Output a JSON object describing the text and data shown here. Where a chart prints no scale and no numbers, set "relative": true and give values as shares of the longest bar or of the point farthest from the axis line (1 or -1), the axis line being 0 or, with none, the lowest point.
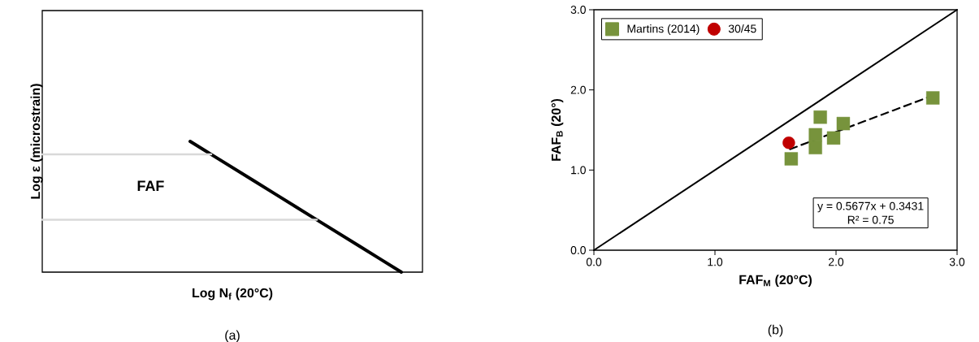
{
  "chart_data": [
    {
      "type": "line",
      "relative": true,
      "xlabel": "Log N$_{f}$ (20°C)",
      "ylabel": "Log ε (microstrain)",
      "categories": [
        null,
        null,
        null,
        null,
        null,
        null,
        null,
        null,
        null,
        null,
        null,
        null,
        null,
        null,
        null,
        null,
        null,
        null,
        null
      ],
      "tick_labels": false,
      "annotations": [
        "FAF",
        "(a)"
      ],
      "series": [
        {
          "color": "#000000",
          "values": [
            null,
            null,
            null,
            null,
            null,
            null,
            null,
            1,
            0.9,
            0.8,
            0.7,
            0.6,
            0.5,
            0.4,
            0.3,
            0.2,
            0.1,
            0,
            null
          ]
        },
        {
          "color": "#d9d9d9",
          "values": [
            0.9,
            0.9,
            0.9,
            0.9,
            0.9,
            0.9,
            0.9,
            0.9,
            0.9,
            null,
            null,
            null,
            null,
            null,
            null,
            null,
            null,
            null,
            null
          ]
        },
        {
          "color": "#d9d9d9",
          "values": [
            0.4,
            0.4,
            0.4,
            0.4,
            0.4,
            0.4,
            0.4,
            0.4,
            0.4,
            0.4,
            0.4,
            0.4,
            0.4,
            0.4,
            null,
            null,
            null,
            null,
            null
          ]
        }
      ]
    },
    {
      "type": "scatter",
      "xlabel": "FAF$_{M}$ (20°C)",
      "ylabel": "FAF$_{B}$ (20°)",
      "xlim": [
        0,
        3
      ],
      "ylim": [
        0,
        3
      ],
      "xticks": [
        {
          "value": 0,
          "label": "0.0"
        },
        {
          "value": 1,
          "label": "1.0"
        },
        {
          "value": 2,
          "label": "2.0"
        },
        {
          "value": 3,
          "label": "3.0"
        }
      ],
      "yticks": [
        {
          "value": 0,
          "label": "0.0"
        },
        {
          "value": 1,
          "label": "1.0"
        },
        {
          "value": 2,
          "label": "2.0"
        },
        {
          "value": 3,
          "label": "3.0"
        }
      ],
      "legend": "top left",
      "annotations": [
        "y = 0.5677x + 0.3431",
        "R² = 0.75",
        "(b)"
      ],
      "series": [
        {
          "name": "Martins (2014)",
          "color": "#77933c",
          "marker": "square",
          "x": [
            1.63,
            1.87,
            1.83,
            1.83,
            1.98,
            2.06,
            2.8
          ],
          "values": [
            1.14,
            1.66,
            1.44,
            1.28,
            1.4,
            1.58,
            1.9
          ]
        },
        {
          "name": "30/45",
          "color": "#c00000",
          "marker": "circle",
          "x": [
            1.61
          ],
          "values": [
            1.34
          ]
        },
        {
          "type": "line",
          "color": "#000000",
          "line_style": "dashed",
          "x": [
            1.62,
            2.8
          ],
          "values": [
            1.26,
            1.93
          ]
        },
        {
          "type": "line",
          "color": "#000000",
          "x": [
            0,
            3
          ],
          "values": [
            0,
            3
          ]
        }
      ]
    }
  ]
}
